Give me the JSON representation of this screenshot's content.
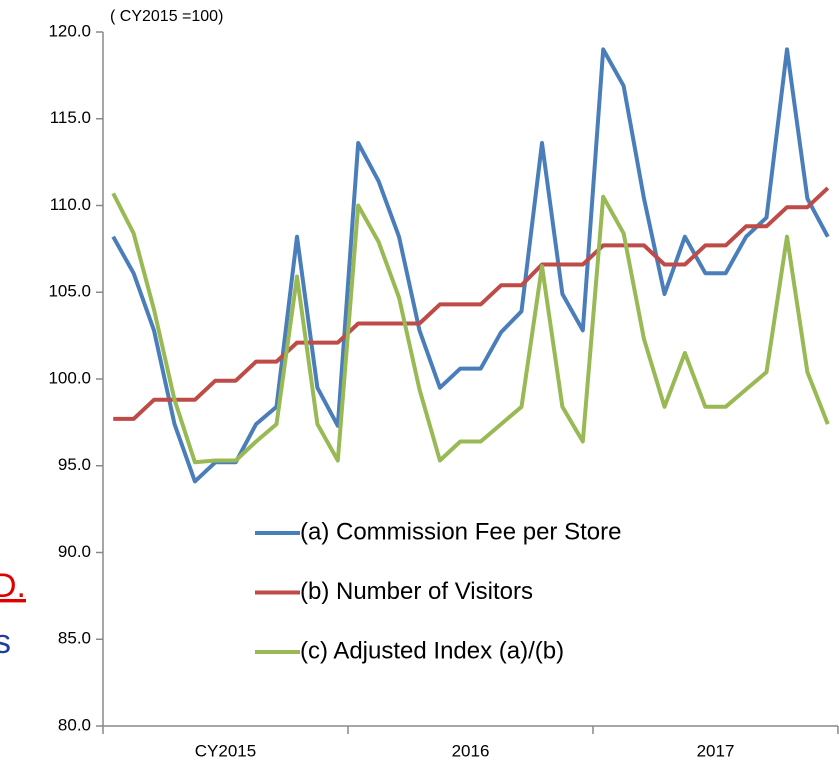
{
  "chart_data": {
    "type": "line",
    "unit_note": "( CY2015 =100)",
    "year_labels": [
      "CY2015",
      "2016",
      "2017"
    ],
    "ylim": [
      80,
      120
    ],
    "yticks": [
      {
        "value": 80,
        "label": "80.0"
      },
      {
        "value": 85,
        "label": "85.0"
      },
      {
        "value": 90,
        "label": "90.0"
      },
      {
        "value": 95,
        "label": "95.0"
      },
      {
        "value": 100,
        "label": "100.0"
      },
      {
        "value": 105,
        "label": "105.0"
      },
      {
        "value": 110,
        "label": "110.0"
      },
      {
        "value": 115,
        "label": "115.0"
      },
      {
        "value": 120,
        "label": "120.0"
      }
    ],
    "grid": false,
    "series": [
      {
        "name": "(a) Commission Fee per Store",
        "color": "#4a7ebb",
        "values": [
          108.2,
          106.1,
          102.8,
          97.4,
          94.1,
          95.2,
          95.2,
          97.4,
          98.4,
          108.2,
          99.5,
          97.3,
          113.6,
          111.4,
          108.2,
          102.8,
          99.5,
          100.6,
          100.6,
          102.7,
          103.9,
          113.6,
          104.9,
          102.8,
          119.0,
          116.9,
          110.4,
          104.9,
          108.2,
          106.1,
          106.1,
          108.2,
          109.3,
          119.0,
          110.4,
          108.2
        ]
      },
      {
        "name": "(b) Number of Visitors",
        "color": "#be4b48",
        "values": [
          97.7,
          97.7,
          98.8,
          98.8,
          98.8,
          99.9,
          99.9,
          101.0,
          101.0,
          102.1,
          102.1,
          102.1,
          103.2,
          103.2,
          103.2,
          103.2,
          104.3,
          104.3,
          104.3,
          105.4,
          105.4,
          106.6,
          106.6,
          106.6,
          107.7,
          107.7,
          107.7,
          106.6,
          106.6,
          107.7,
          107.7,
          108.8,
          108.8,
          109.9,
          109.9,
          111.0
        ]
      },
      {
        "name": "(c) Adjusted Index (a)/(b)",
        "color": "#98b954",
        "values": [
          110.7,
          108.4,
          104.0,
          98.8,
          95.2,
          95.3,
          95.3,
          96.4,
          97.4,
          105.9,
          97.4,
          95.3,
          110.0,
          107.9,
          104.7,
          99.4,
          95.3,
          96.4,
          96.4,
          97.4,
          98.4,
          106.5,
          98.4,
          96.4,
          110.5,
          108.4,
          102.3,
          98.4,
          101.5,
          98.4,
          98.4,
          99.4,
          100.4,
          108.2,
          100.4,
          97.4
        ]
      }
    ]
  },
  "fragments": [
    "D.",
    "s"
  ]
}
